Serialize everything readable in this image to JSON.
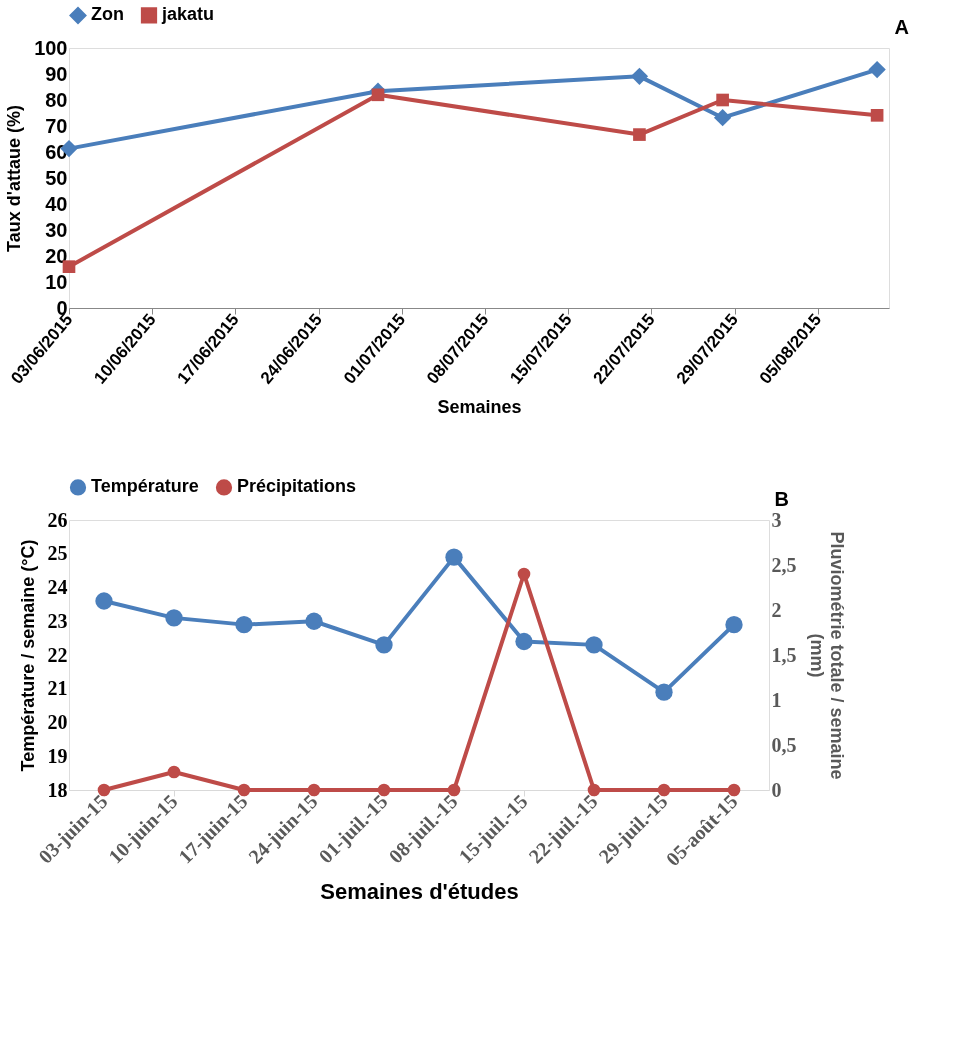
{
  "chart_data": [
    {
      "type": "line",
      "annotations": [
        "A"
      ],
      "xlabel": "Semaines",
      "ylabel": "Taux d'attaue (%)",
      "legend": "top",
      "grid": false,
      "x": [
        "2015-06-03",
        "2015-06-29",
        "2015-07-21",
        "2015-07-28",
        "2015-08-10"
      ],
      "xlim": [
        "2015-06-03",
        "2015-08-11"
      ],
      "xticks": [
        {
          "value": "2015-06-03",
          "label": "03/06/2015"
        },
        {
          "value": "2015-06-10",
          "label": "10/06/2015"
        },
        {
          "value": "2015-06-17",
          "label": "17/06/2015"
        },
        {
          "value": "2015-06-24",
          "label": "24/06/2015"
        },
        {
          "value": "2015-07-01",
          "label": "01/07/2015"
        },
        {
          "value": "2015-07-08",
          "label": "08/07/2015"
        },
        {
          "value": "2015-07-15",
          "label": "15/07/2015"
        },
        {
          "value": "2015-07-22",
          "label": "22/07/2015"
        },
        {
          "value": "2015-07-29",
          "label": "29/07/2015"
        },
        {
          "value": "2015-08-05",
          "label": "05/08/2015"
        }
      ],
      "ylim": [
        0,
        100
      ],
      "yticks": [
        0,
        10,
        20,
        30,
        40,
        50,
        60,
        70,
        80,
        90,
        100
      ],
      "series": [
        {
          "name": "Zon",
          "color": "#4a7ebb",
          "marker": "diamond",
          "values": [
            61.3,
            83.4,
            89.1,
            73.2,
            91.7
          ]
        },
        {
          "name": "jakatu",
          "color": "#be4b48",
          "marker": "square",
          "values": [
            15.9,
            82,
            66.7,
            80,
            74.1
          ]
        }
      ]
    },
    {
      "type": "line",
      "annotations": [
        "B"
      ],
      "xlabel": "Semaines d'études",
      "ylabel": "Température / semaine (°C)",
      "y2label": "Pluviométrie totale / semaine (mm)",
      "legend": "top",
      "grid": false,
      "marker": "circle",
      "categories": [
        "03-juin-15",
        "10-juin-15",
        "17-juin-15",
        "24-juin-15",
        "01-juil.-15",
        "08-juil.-15",
        "15-juil.-15",
        "22-juil.-15",
        "29-juil.-15",
        "05-août-15"
      ],
      "ylim": [
        18,
        26
      ],
      "yticks": [
        18,
        19,
        20,
        21,
        22,
        23,
        24,
        25,
        26
      ],
      "y2lim": [
        0,
        3
      ],
      "y2ticks": [
        0,
        {
          "value": 0.5,
          "label": "0,5"
        },
        1,
        {
          "value": 1.5,
          "label": "1,5"
        },
        2,
        {
          "value": 2.5,
          "label": "2,5"
        },
        3
      ],
      "series": [
        {
          "name": "Température",
          "color": "#4a7ebb",
          "values": [
            23.6,
            23.1,
            22.9,
            23.0,
            22.3,
            24.9,
            22.4,
            22.3,
            20.9,
            22.9
          ]
        },
        {
          "name": "Précipitations",
          "color": "#be4b48",
          "axis": "y2",
          "values": [
            0,
            0.2,
            0,
            0,
            0,
            0,
            2.4,
            0,
            0,
            0
          ]
        }
      ]
    }
  ]
}
